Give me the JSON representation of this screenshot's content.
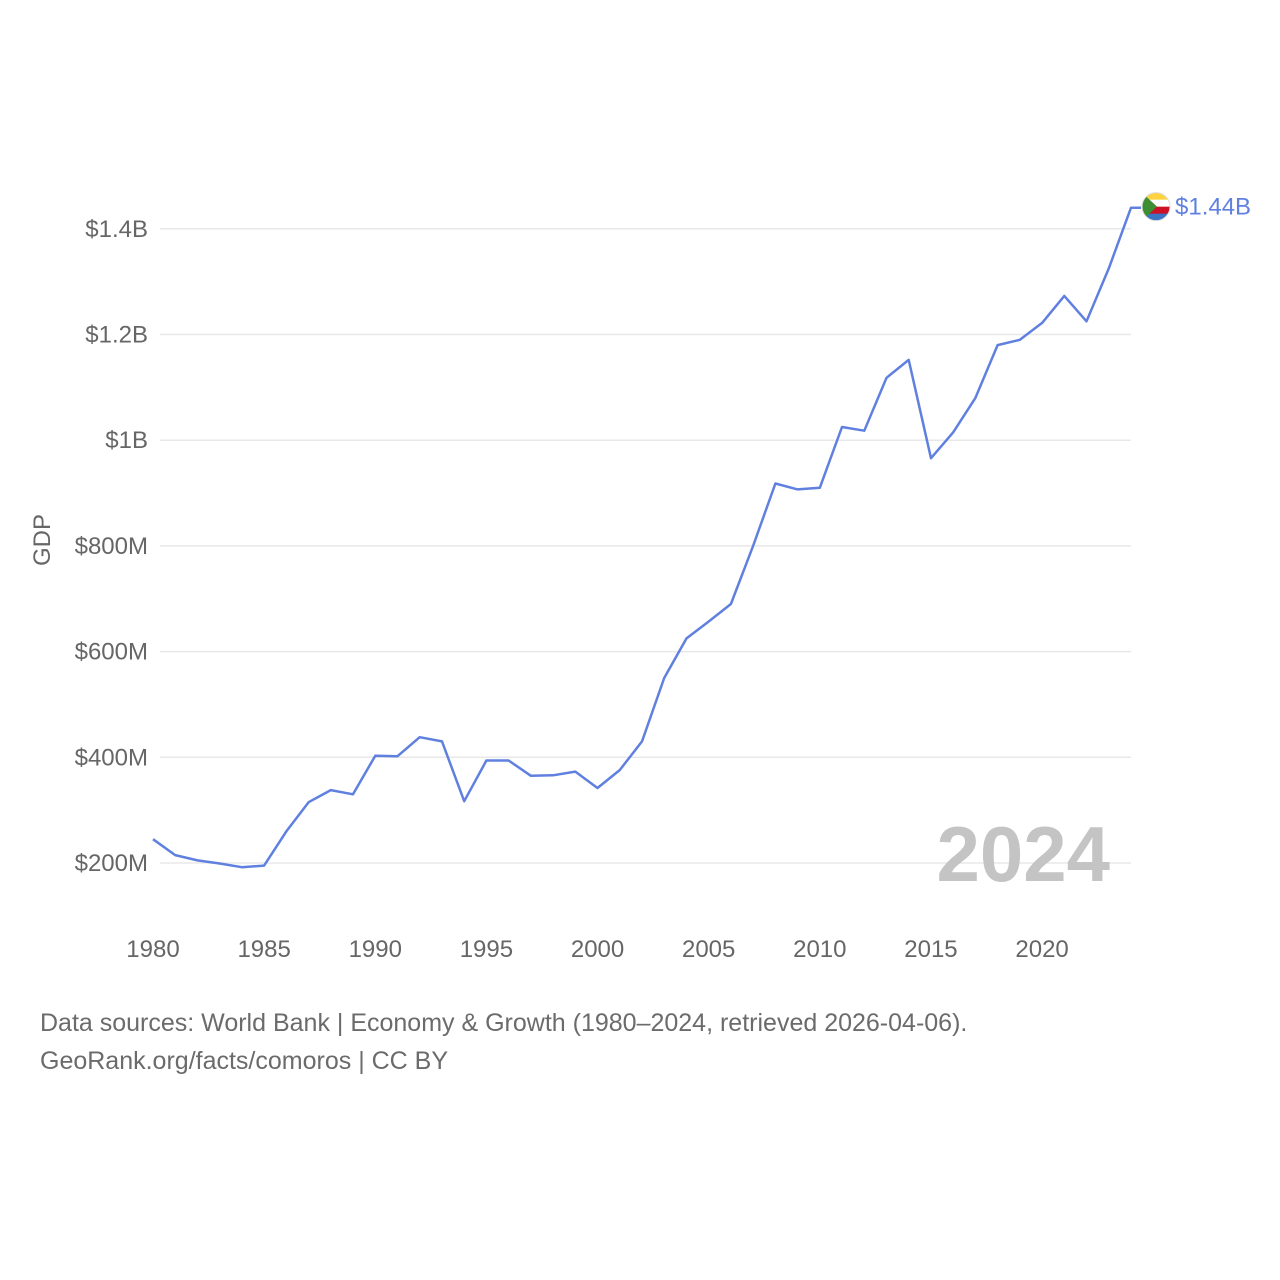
{
  "chart_data": {
    "type": "line",
    "title": "",
    "xlabel": "",
    "ylabel": "GDP",
    "xlim": [
      1980,
      2024
    ],
    "ylim": [
      100000000,
      1500000000
    ],
    "x_ticks": [
      1980,
      1985,
      1990,
      1995,
      2000,
      2005,
      2010,
      2015,
      2020
    ],
    "x_tick_labels": [
      "1980",
      "1985",
      "1990",
      "1995",
      "2000",
      "2005",
      "2010",
      "2015",
      "2020"
    ],
    "y_ticks": [
      200000000,
      400000000,
      600000000,
      800000000,
      1000000000,
      1200000000,
      1400000000
    ],
    "y_tick_labels": [
      "$200M",
      "$400M",
      "$600M",
      "$800M",
      "$1B",
      "$1.2B",
      "$1.4B"
    ],
    "grid": true,
    "series": [
      {
        "name": "Comoros",
        "color": "#6080e0",
        "end_label": "$1.44B",
        "x": [
          1980,
          1981,
          1982,
          1983,
          1984,
          1985,
          1986,
          1987,
          1988,
          1989,
          1990,
          1991,
          1992,
          1993,
          1994,
          1995,
          1996,
          1997,
          1998,
          1999,
          2000,
          2001,
          2002,
          2003,
          2004,
          2005,
          2006,
          2007,
          2008,
          2009,
          2010,
          2011,
          2012,
          2013,
          2014,
          2015,
          2016,
          2017,
          2018,
          2019,
          2020,
          2021,
          2022,
          2023,
          2024
        ],
        "values": [
          245000000,
          215000000,
          205000000,
          199000000,
          192000000,
          195000000,
          260000000,
          315000000,
          338000000,
          330000000,
          403000000,
          402000000,
          438000000,
          430000000,
          317000000,
          394000000,
          394000000,
          365000000,
          366000000,
          373000000,
          342000000,
          376000000,
          430000000,
          550000000,
          625000000,
          657000000,
          690000000,
          800000000,
          918000000,
          907000000,
          910000000,
          1025000000,
          1018000000,
          1118000000,
          1152000000,
          966000000,
          1015000000,
          1080000000,
          1180000000,
          1190000000,
          1222000000,
          1273000000,
          1225000000,
          1325000000,
          1440000000
        ]
      }
    ],
    "annotation_year": "2024"
  },
  "source": {
    "line1": "Data sources: World Bank | Economy & Growth (1980–2024, retrieved 2026-04-06).",
    "line2": "GeoRank.org/facts/comoros | CC BY"
  },
  "colors": {
    "line": "#6080e0",
    "grid": "#e8e8e8",
    "text": "#666666",
    "year": "#c4c4c4"
  },
  "flag_icon": "comoros-flag-icon"
}
